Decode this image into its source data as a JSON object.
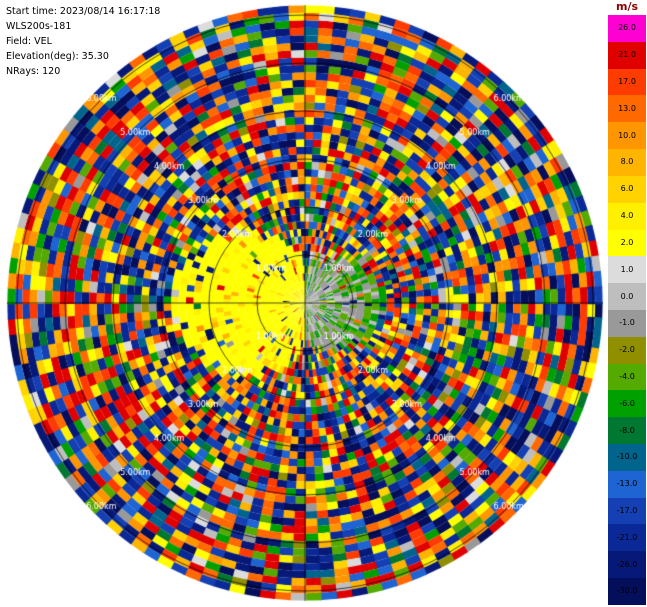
{
  "header": {
    "lines": [
      "Start time: 2023/08/14 16:17:18",
      "WLS200s-181",
      "Field: VEL",
      "Elevation(deg): 35.30",
      "NRays: 120"
    ]
  },
  "colorbar": {
    "title": "m/s",
    "title_color": "#8b0000",
    "segments": [
      {
        "label": "26.0",
        "color": "#ff00d2"
      },
      {
        "label": "21.0",
        "color": "#e00000"
      },
      {
        "label": "17.0",
        "color": "#ff3c00"
      },
      {
        "label": "13.0",
        "color": "#ff6900"
      },
      {
        "label": "10.0",
        "color": "#ff9600"
      },
      {
        "label": "8.0",
        "color": "#ffb400"
      },
      {
        "label": "6.0",
        "color": "#ffd200"
      },
      {
        "label": "4.0",
        "color": "#fff000"
      },
      {
        "label": "2.0",
        "color": "#ffff00"
      },
      {
        "label": "1.0",
        "color": "#dcdcdc"
      },
      {
        "label": "0.0",
        "color": "#bebebe"
      },
      {
        "label": "-1.0",
        "color": "#999999"
      },
      {
        "label": "-2.0",
        "color": "#8f8f00"
      },
      {
        "label": "-4.0",
        "color": "#55aa00"
      },
      {
        "label": "-6.0",
        "color": "#00a000"
      },
      {
        "label": "-8.0",
        "color": "#007832"
      },
      {
        "label": "-10.0",
        "color": "#00648c"
      },
      {
        "label": "-13.0",
        "color": "#1e64d2"
      },
      {
        "label": "-17.0",
        "color": "#1440b4"
      },
      {
        "label": "-21.0",
        "color": "#0a2896"
      },
      {
        "label": "-26.0",
        "color": "#061978"
      },
      {
        "label": "-30.0",
        "color": "#040e5a"
      }
    ]
  },
  "chart_data": {
    "type": "heatmap",
    "projection": "polar_ppi",
    "title": "",
    "field": "VEL",
    "units": "m/s",
    "start_time": "2023/08/14 16:17:18",
    "instrument": "WLS200s-181",
    "elevation_deg": 35.3,
    "n_rays": 120,
    "n_gates": 40,
    "max_range_km": 6.2,
    "range_rings_km": [
      1,
      2,
      3,
      4,
      5,
      6
    ],
    "ring_label_decimals": 2,
    "ring_label_suffix": "km",
    "ring_label_color": "#ffffff",
    "grid_color": "#000000",
    "value_boundaries": [
      -30,
      -26,
      -21,
      -17,
      -13,
      -10,
      -8,
      -6,
      -4,
      -2,
      -1,
      0,
      1,
      2,
      4,
      6,
      8,
      10,
      13,
      17,
      21,
      26
    ],
    "regions": [
      {
        "name": "west-coherent-lobe",
        "approx_value_mps": 3,
        "max_extent_km": 2.8,
        "description": "yellow positive velocities west of center"
      },
      {
        "name": "east-coherent-lobe",
        "approx_value_mps": -0.5,
        "max_extent_km": 1.6,
        "description": "gray near-zero with green (-2 to -5) speckle east of center"
      },
      {
        "name": "outer-noise",
        "value_range_mps": [
          -30,
          26
        ],
        "description": "uniform random noise beyond valid signal range"
      }
    ],
    "random_seed": 42
  }
}
